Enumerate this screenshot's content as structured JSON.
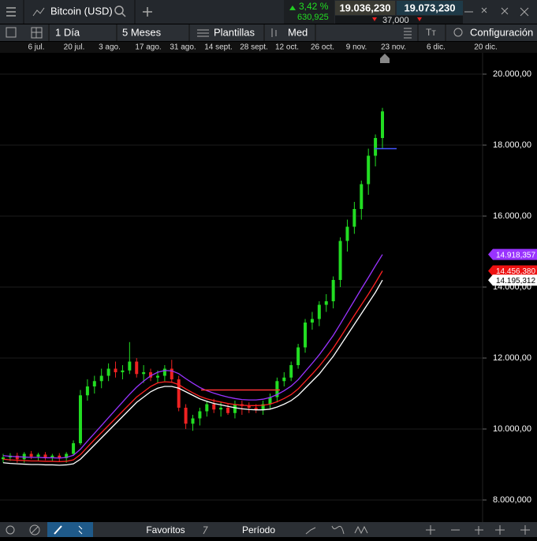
{
  "topbar": {
    "instrument": "Bitcoin (USD)",
    "change_pct": "3,42 %",
    "change_abs": "630,925",
    "sell": "19.036,230",
    "spread": "37,000",
    "buy": "19.073,230"
  },
  "toolbar": {
    "interval": "1 Día",
    "range": "5 Meses",
    "templates": "Plantillas",
    "indicators": "Med",
    "settings": "Configuración"
  },
  "bottombar": {
    "favorites": "Favoritos",
    "period": "Período"
  },
  "chart_data": {
    "type": "candlestick",
    "x_labels": [
      "6 jul.",
      "20 jul.",
      "3 ago.",
      "17 ago.",
      "31 ago.",
      "14 sept.",
      "28 sept.",
      "12 oct.",
      "26 oct.",
      "9 nov.",
      "23 nov.",
      "6 dic.",
      "20 dic."
    ],
    "open": [
      9150,
      9200,
      9250,
      9150,
      9300,
      9220,
      9280,
      9200,
      9250,
      9180,
      9300,
      9600,
      10950,
      11200,
      11350,
      11500,
      11700,
      11600,
      11650,
      11900,
      11550,
      11600,
      11450,
      11500,
      11700,
      11400,
      10600,
      10150,
      10300,
      10500,
      10700,
      10550,
      10600,
      10450,
      10700,
      10650,
      10600,
      10550,
      10700,
      10900,
      11350,
      11450,
      11800,
      12300,
      13000,
      13100,
      13500,
      13600,
      14200,
      15300,
      15700,
      16200,
      16900,
      17700,
      18200
    ],
    "high": [
      9300,
      9320,
      9330,
      9350,
      9380,
      9330,
      9350,
      9300,
      9320,
      9350,
      9680,
      11100,
      11400,
      11500,
      11700,
      11850,
      11900,
      11800,
      12450,
      12000,
      11800,
      11700,
      11650,
      11800,
      11950,
      11500,
      10700,
      10400,
      10600,
      10800,
      10850,
      10750,
      10700,
      10800,
      10800,
      10750,
      10700,
      10800,
      11000,
      11450,
      11600,
      11900,
      12400,
      13100,
      13300,
      13600,
      13800,
      14300,
      15400,
      15900,
      16400,
      17000,
      17900,
      18300,
      19050
    ],
    "low": [
      9050,
      9100,
      9050,
      9050,
      9150,
      9100,
      9120,
      9100,
      9080,
      9050,
      9250,
      9550,
      10800,
      11000,
      11150,
      11350,
      11450,
      11400,
      11550,
      11450,
      11300,
      11350,
      11300,
      11350,
      11300,
      10500,
      10000,
      9950,
      10100,
      10350,
      10450,
      10350,
      10400,
      10300,
      10400,
      10450,
      10450,
      10400,
      10550,
      10750,
      11200,
      11350,
      11700,
      12150,
      12800,
      12900,
      13300,
      13400,
      14000,
      15000,
      15500,
      15900,
      16600,
      17400,
      17900
    ],
    "close": [
      9200,
      9250,
      9150,
      9300,
      9220,
      9280,
      9200,
      9250,
      9180,
      9300,
      9600,
      10950,
      11200,
      11350,
      11500,
      11700,
      11600,
      11650,
      11900,
      11550,
      11600,
      11450,
      11500,
      11700,
      11400,
      10600,
      10150,
      10300,
      10500,
      10700,
      10550,
      10600,
      10450,
      10700,
      10650,
      10600,
      10550,
      10700,
      10900,
      11350,
      11450,
      11800,
      12300,
      13000,
      13100,
      13500,
      13600,
      14200,
      15300,
      15700,
      16200,
      16900,
      17700,
      18200,
      18950
    ],
    "up_color": "#22dd22",
    "down_color": "#ee2222",
    "series": [
      {
        "color": "#9933ff",
        "values": [
          9250,
          9230,
          9220,
          9210,
          9200,
          9200,
          9190,
          9190,
          9180,
          9200,
          9260,
          9430,
          9660,
          9880,
          10100,
          10320,
          10540,
          10760,
          10980,
          11180,
          11350,
          11500,
          11600,
          11650,
          11640,
          11560,
          11420,
          11290,
          11170,
          11080,
          11010,
          10950,
          10900,
          10860,
          10830,
          10820,
          10820,
          10840,
          10890,
          10970,
          11080,
          11210,
          11390,
          11620,
          11850,
          12090,
          12360,
          12640,
          12960,
          13290,
          13620,
          13950,
          14270,
          14600,
          14918
        ]
      },
      {
        "color": "#ff2222",
        "values": [
          9150,
          9130,
          9120,
          9110,
          9100,
          9100,
          9090,
          9090,
          9080,
          9090,
          9130,
          9280,
          9490,
          9700,
          9900,
          10100,
          10300,
          10500,
          10700,
          10900,
          11050,
          11200,
          11300,
          11330,
          11320,
          11250,
          11130,
          11020,
          10920,
          10850,
          10800,
          10760,
          10720,
          10690,
          10670,
          10660,
          10660,
          10670,
          10700,
          10770,
          10860,
          10970,
          11130,
          11340,
          11550,
          11770,
          12020,
          12280,
          12580,
          12890,
          13200,
          13500,
          13800,
          14120,
          14456
        ]
      },
      {
        "color": "#ffffff",
        "values": [
          9050,
          9030,
          9020,
          9010,
          9000,
          9000,
          8990,
          8990,
          8980,
          8990,
          9020,
          9150,
          9350,
          9550,
          9750,
          9950,
          10150,
          10350,
          10550,
          10750,
          10900,
          11050,
          11150,
          11200,
          11200,
          11150,
          11050,
          10950,
          10850,
          10780,
          10720,
          10680,
          10640,
          10600,
          10570,
          10550,
          10540,
          10540,
          10560,
          10620,
          10700,
          10800,
          10950,
          11150,
          11350,
          11550,
          11800,
          12050,
          12350,
          12650,
          12950,
          13250,
          13550,
          13850,
          14195
        ]
      }
    ],
    "price_tags": [
      {
        "value": 14918.357,
        "label": "14.918,357",
        "color": "#9933ff"
      },
      {
        "value": 14456.38,
        "label": "14.456,380",
        "color": "#ee1111"
      },
      {
        "value": 14195.312,
        "label": "14.195,312",
        "color": "#ffffff"
      }
    ],
    "hlines": [
      {
        "value": 11100,
        "color": "#ff3333"
      },
      {
        "value": 17900,
        "color": "#4455ff"
      }
    ],
    "ylim": [
      7378,
      20600
    ],
    "yticks": [
      {
        "value": 8000,
        "label": "8.000,000"
      },
      {
        "value": 10000,
        "label": "10.000,00"
      },
      {
        "value": 12000,
        "label": "12.000,00"
      },
      {
        "value": 14000,
        "label": "14.000,00"
      },
      {
        "value": 16000,
        "label": "16.000,00"
      },
      {
        "value": 18000,
        "label": "18.000,00"
      },
      {
        "value": 20000,
        "label": "20.000,00"
      }
    ],
    "grid": true
  }
}
